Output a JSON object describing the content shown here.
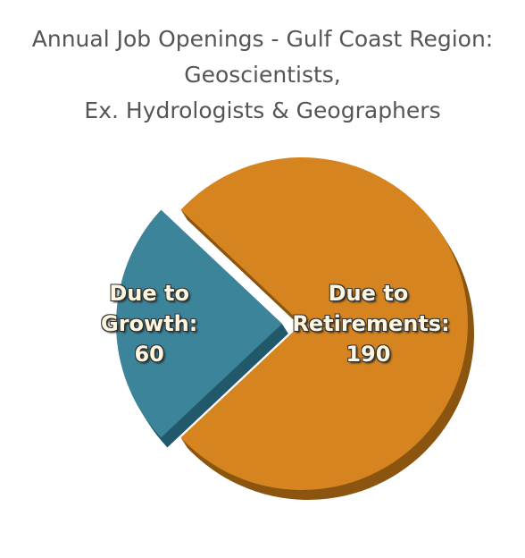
{
  "chart_data": {
    "type": "pie",
    "title": [
      "Annual Job Openings - Gulf Coast Region:",
      "Geoscientists,",
      "Ex. Hydrologists & Geographers"
    ],
    "categories": [
      "Due to Growth:",
      "Due to Retirements:"
    ],
    "values": [
      60,
      190
    ],
    "colors": [
      "#3b8499",
      "#d5841f"
    ],
    "side_colors": [
      "#21586a",
      "#8b5510"
    ]
  }
}
